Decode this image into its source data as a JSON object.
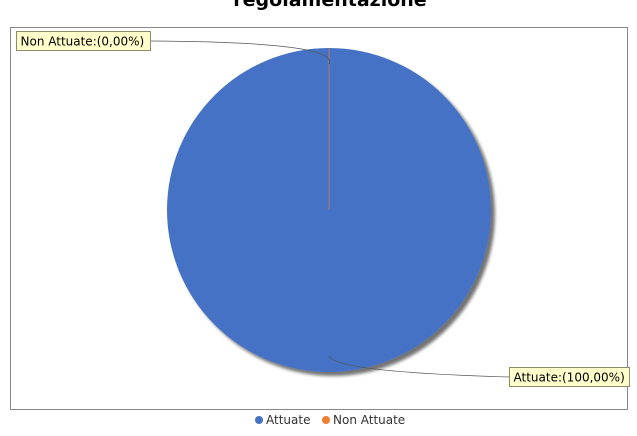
{
  "chart_data": {
    "type": "pie",
    "title": "regolamentazione",
    "categories": [
      "Attuate",
      "Non Attuate"
    ],
    "values": [
      100,
      0
    ],
    "colors": [
      "#4472c4",
      "#ed7d31"
    ],
    "slice_labels": [
      "Attuate:(100,00%)",
      "Non Attuate:(0,00%)"
    ],
    "legend": {
      "placement": "bottom",
      "items": [
        "Attuate",
        "Non Attuate"
      ]
    },
    "label_style": {
      "background": "#ffffcc",
      "border": "#8c8c6a"
    }
  }
}
